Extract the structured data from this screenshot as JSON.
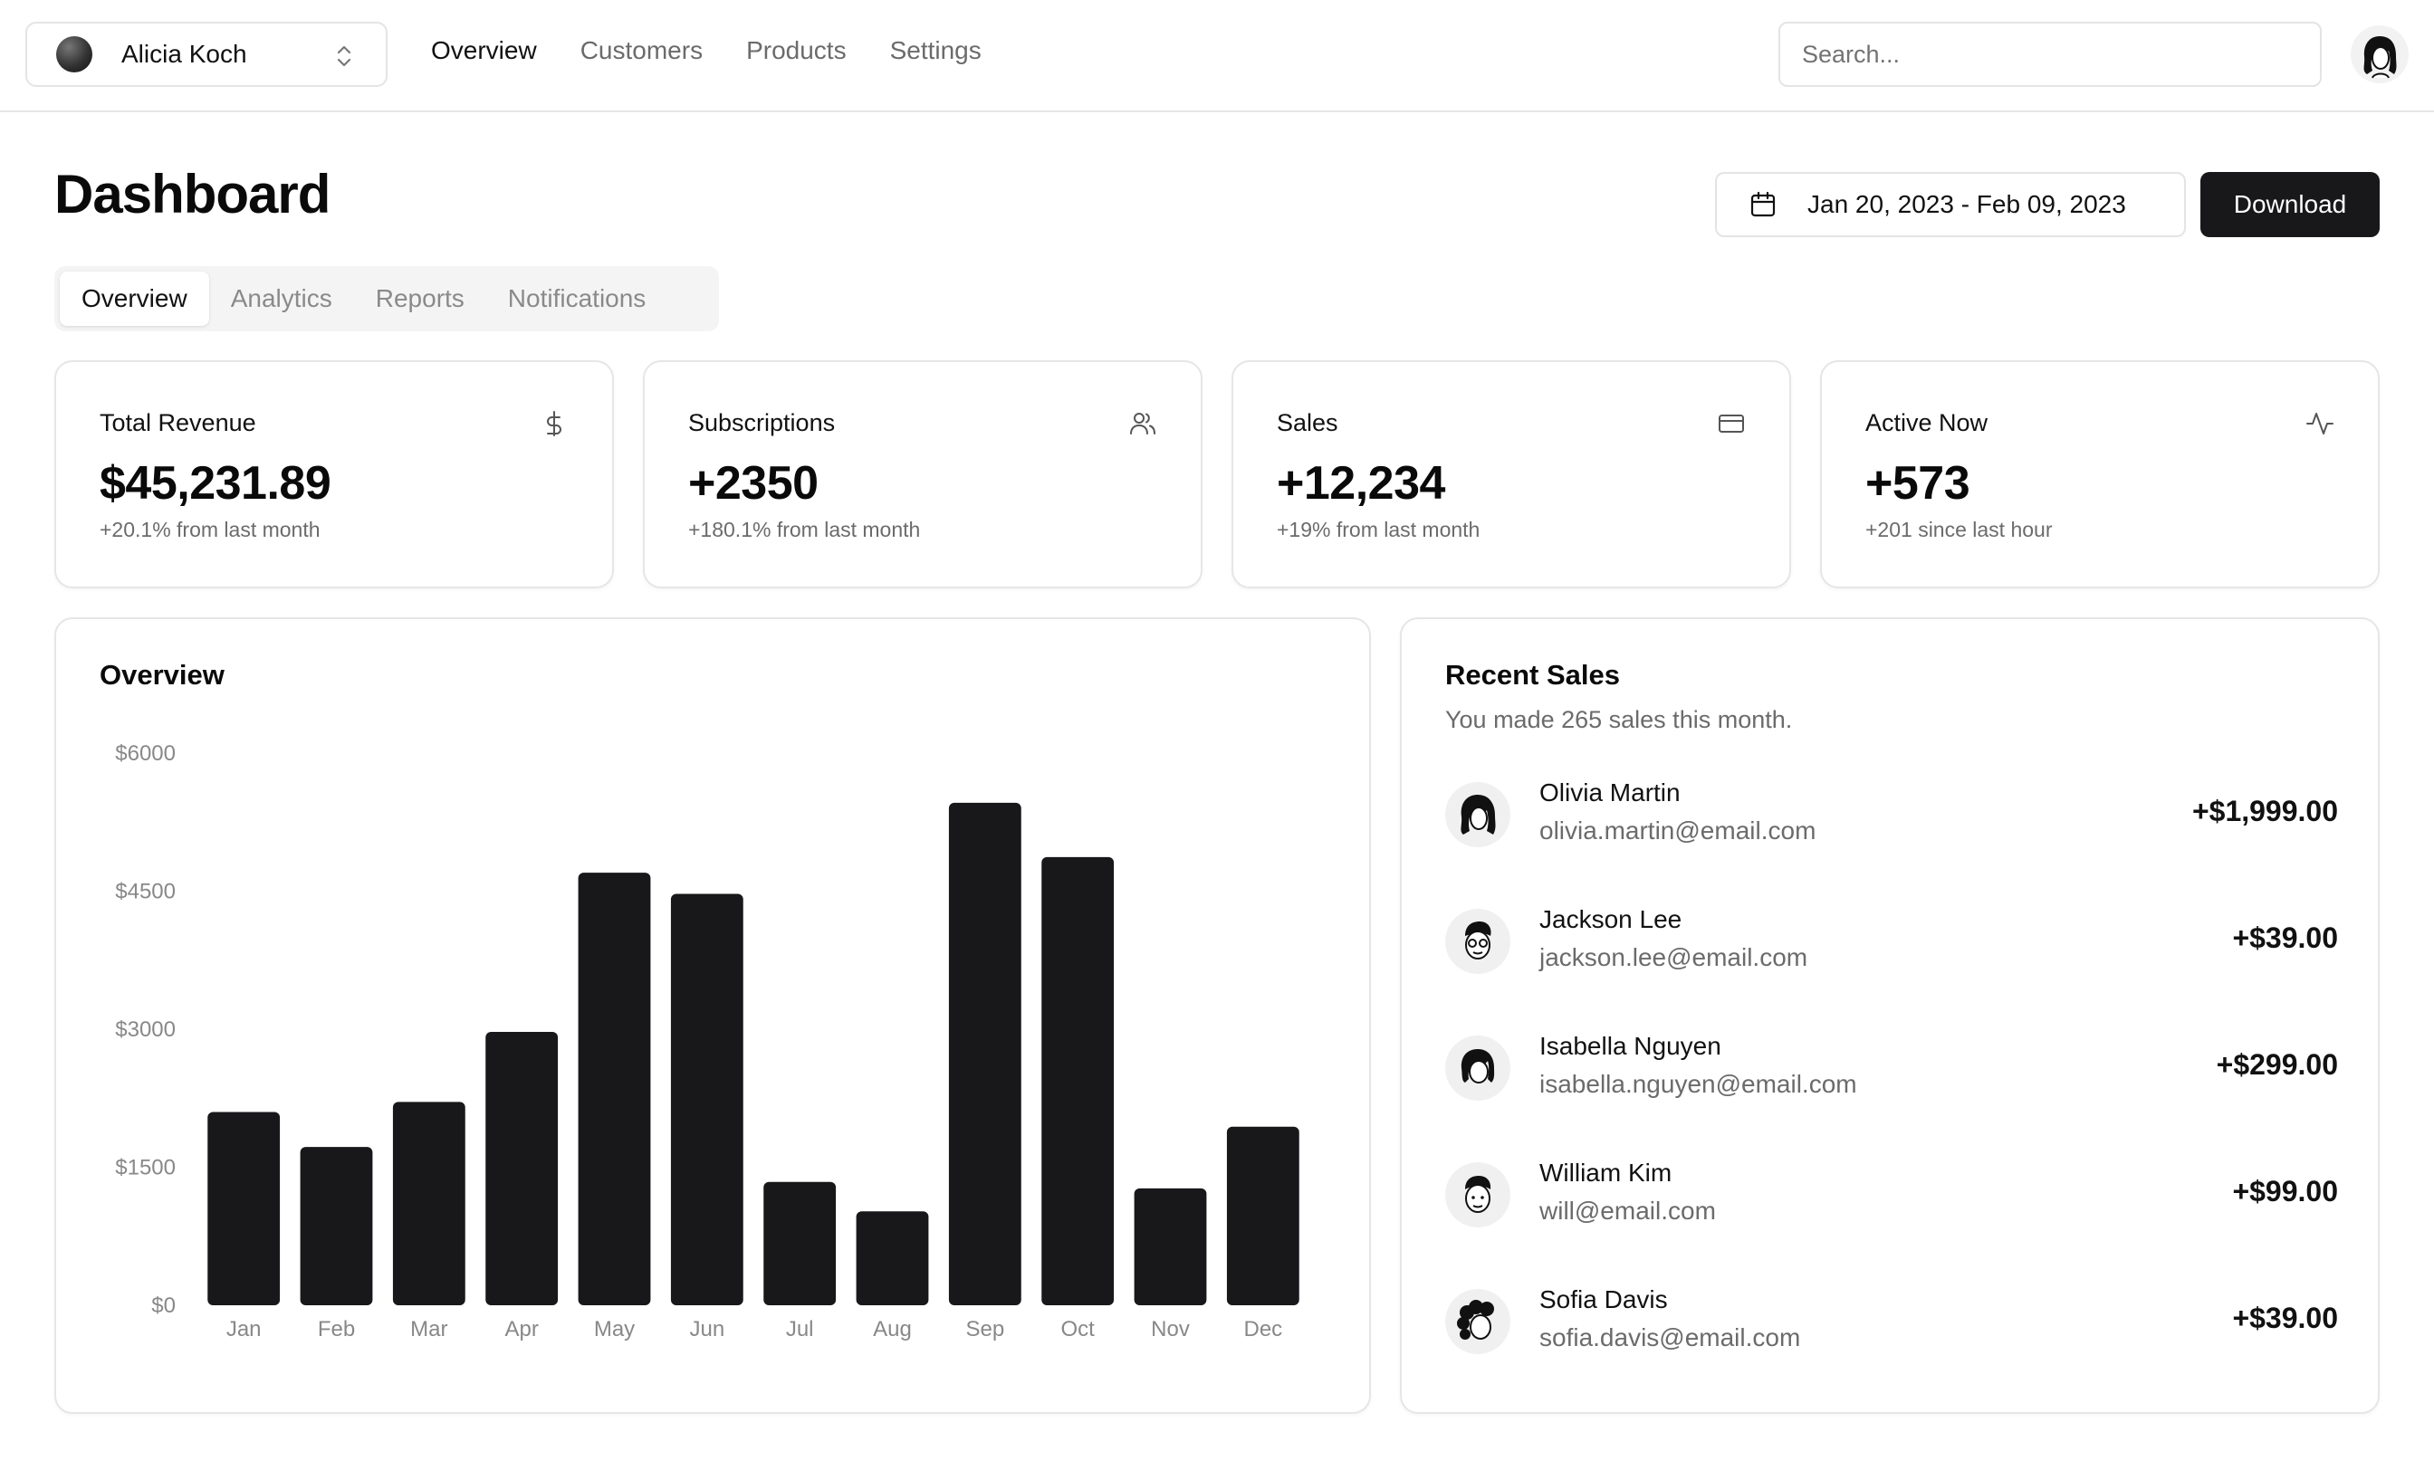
{
  "topbar": {
    "team": {
      "name": "Alicia Koch"
    },
    "nav": [
      {
        "label": "Overview",
        "active": true
      },
      {
        "label": "Customers",
        "active": false
      },
      {
        "label": "Products",
        "active": false
      },
      {
        "label": "Settings",
        "active": false
      }
    ],
    "search": {
      "placeholder": "Search...",
      "value": ""
    }
  },
  "header": {
    "title": "Dashboard",
    "date_range": "Jan 20, 2023 - Feb 09, 2023",
    "download_label": "Download"
  },
  "tabs": [
    {
      "label": "Overview",
      "active": true
    },
    {
      "label": "Analytics",
      "active": false
    },
    {
      "label": "Reports",
      "active": false
    },
    {
      "label": "Notifications",
      "active": false
    }
  ],
  "stats": [
    {
      "title": "Total Revenue",
      "value": "$45,231.89",
      "sub": "+20.1% from last month",
      "icon": "dollar-icon"
    },
    {
      "title": "Subscriptions",
      "value": "+2350",
      "sub": "+180.1% from last month",
      "icon": "users-icon"
    },
    {
      "title": "Sales",
      "value": "+12,234",
      "sub": "+19% from last month",
      "icon": "credit-card-icon"
    },
    {
      "title": "Active Now",
      "value": "+573",
      "sub": "+201 since last hour",
      "icon": "activity-icon"
    }
  ],
  "overview": {
    "title": "Overview"
  },
  "chart_data": {
    "type": "bar",
    "title": "Overview",
    "xlabel": "",
    "ylabel": "",
    "categories": [
      "Jan",
      "Feb",
      "Mar",
      "Apr",
      "May",
      "Jun",
      "Jul",
      "Aug",
      "Sep",
      "Oct",
      "Nov",
      "Dec"
    ],
    "values": [
      2100,
      1720,
      2210,
      2970,
      4700,
      4470,
      1340,
      1020,
      5460,
      4870,
      1270,
      1940
    ],
    "yticks": [
      "$0",
      "$1500",
      "$3000",
      "$4500",
      "$6000"
    ],
    "ylim": [
      0,
      6000
    ],
    "grid": false,
    "bar_color": "#18181b"
  },
  "recent_sales": {
    "title": "Recent Sales",
    "subtitle": "You made 265 sales this month.",
    "items": [
      {
        "name": "Olivia Martin",
        "email": "olivia.martin@email.com",
        "amount": "+$1,999.00"
      },
      {
        "name": "Jackson Lee",
        "email": "jackson.lee@email.com",
        "amount": "+$39.00"
      },
      {
        "name": "Isabella Nguyen",
        "email": "isabella.nguyen@email.com",
        "amount": "+$299.00"
      },
      {
        "name": "William Kim",
        "email": "will@email.com",
        "amount": "+$99.00"
      },
      {
        "name": "Sofia Davis",
        "email": "sofia.davis@email.com",
        "amount": "+$39.00"
      }
    ]
  }
}
